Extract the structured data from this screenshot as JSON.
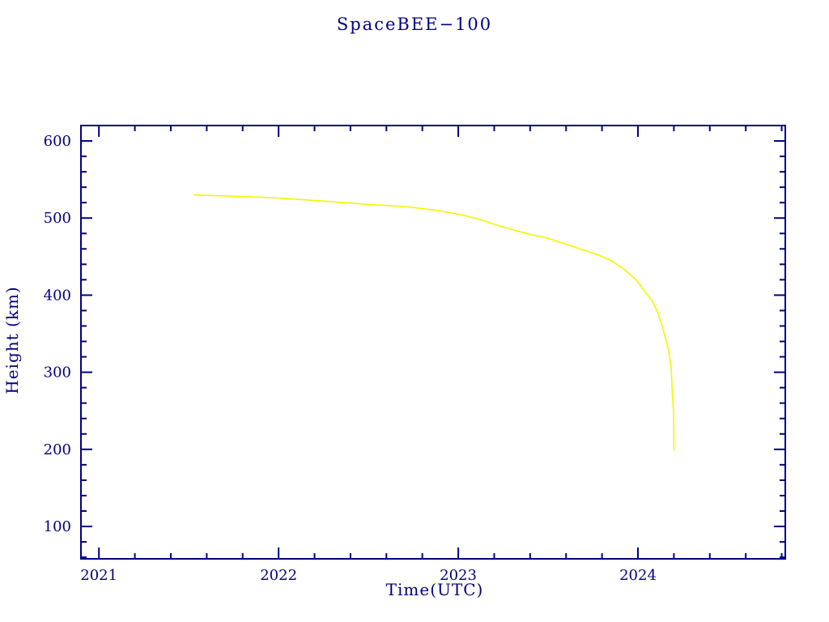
{
  "page": {
    "background": "#ffffff"
  },
  "chart_data": {
    "type": "line",
    "title": "SpaceBEE−100",
    "xlabel": "Time(UTC)",
    "ylabel": "Height (km)",
    "xlim": [
      2020.9,
      2024.82
    ],
    "ylim": [
      58,
      620
    ],
    "x_ticks": [
      2021,
      2022,
      2023,
      2024
    ],
    "y_ticks": [
      100,
      200,
      300,
      400,
      500,
      600
    ],
    "x_minor_step": 0.2,
    "y_minor_step": 20,
    "grid": false,
    "legend": "none",
    "axis_color": "#000080",
    "line_color": "#f5f500",
    "series": [
      {
        "name": "SpaceBEE-100 height",
        "x": [
          2021.53,
          2021.8,
          2022.0,
          2022.25,
          2022.48,
          2022.7,
          2022.88,
          2023.0,
          2023.11,
          2023.24,
          2023.38,
          2023.51,
          2023.6,
          2023.69,
          2023.78,
          2023.85,
          2023.92,
          2023.99,
          2024.03,
          2024.08,
          2024.11,
          2024.13,
          2024.15,
          2024.17,
          2024.185,
          2024.19,
          2024.198,
          2024.2
        ],
        "y": [
          530,
          528,
          526,
          522,
          518,
          515,
          510,
          505,
          499,
          489,
          480,
          473,
          466,
          459,
          452,
          445,
          434,
          420,
          407,
          392,
          378,
          363,
          347,
          329,
          305,
          279,
          247,
          199
        ]
      }
    ]
  }
}
